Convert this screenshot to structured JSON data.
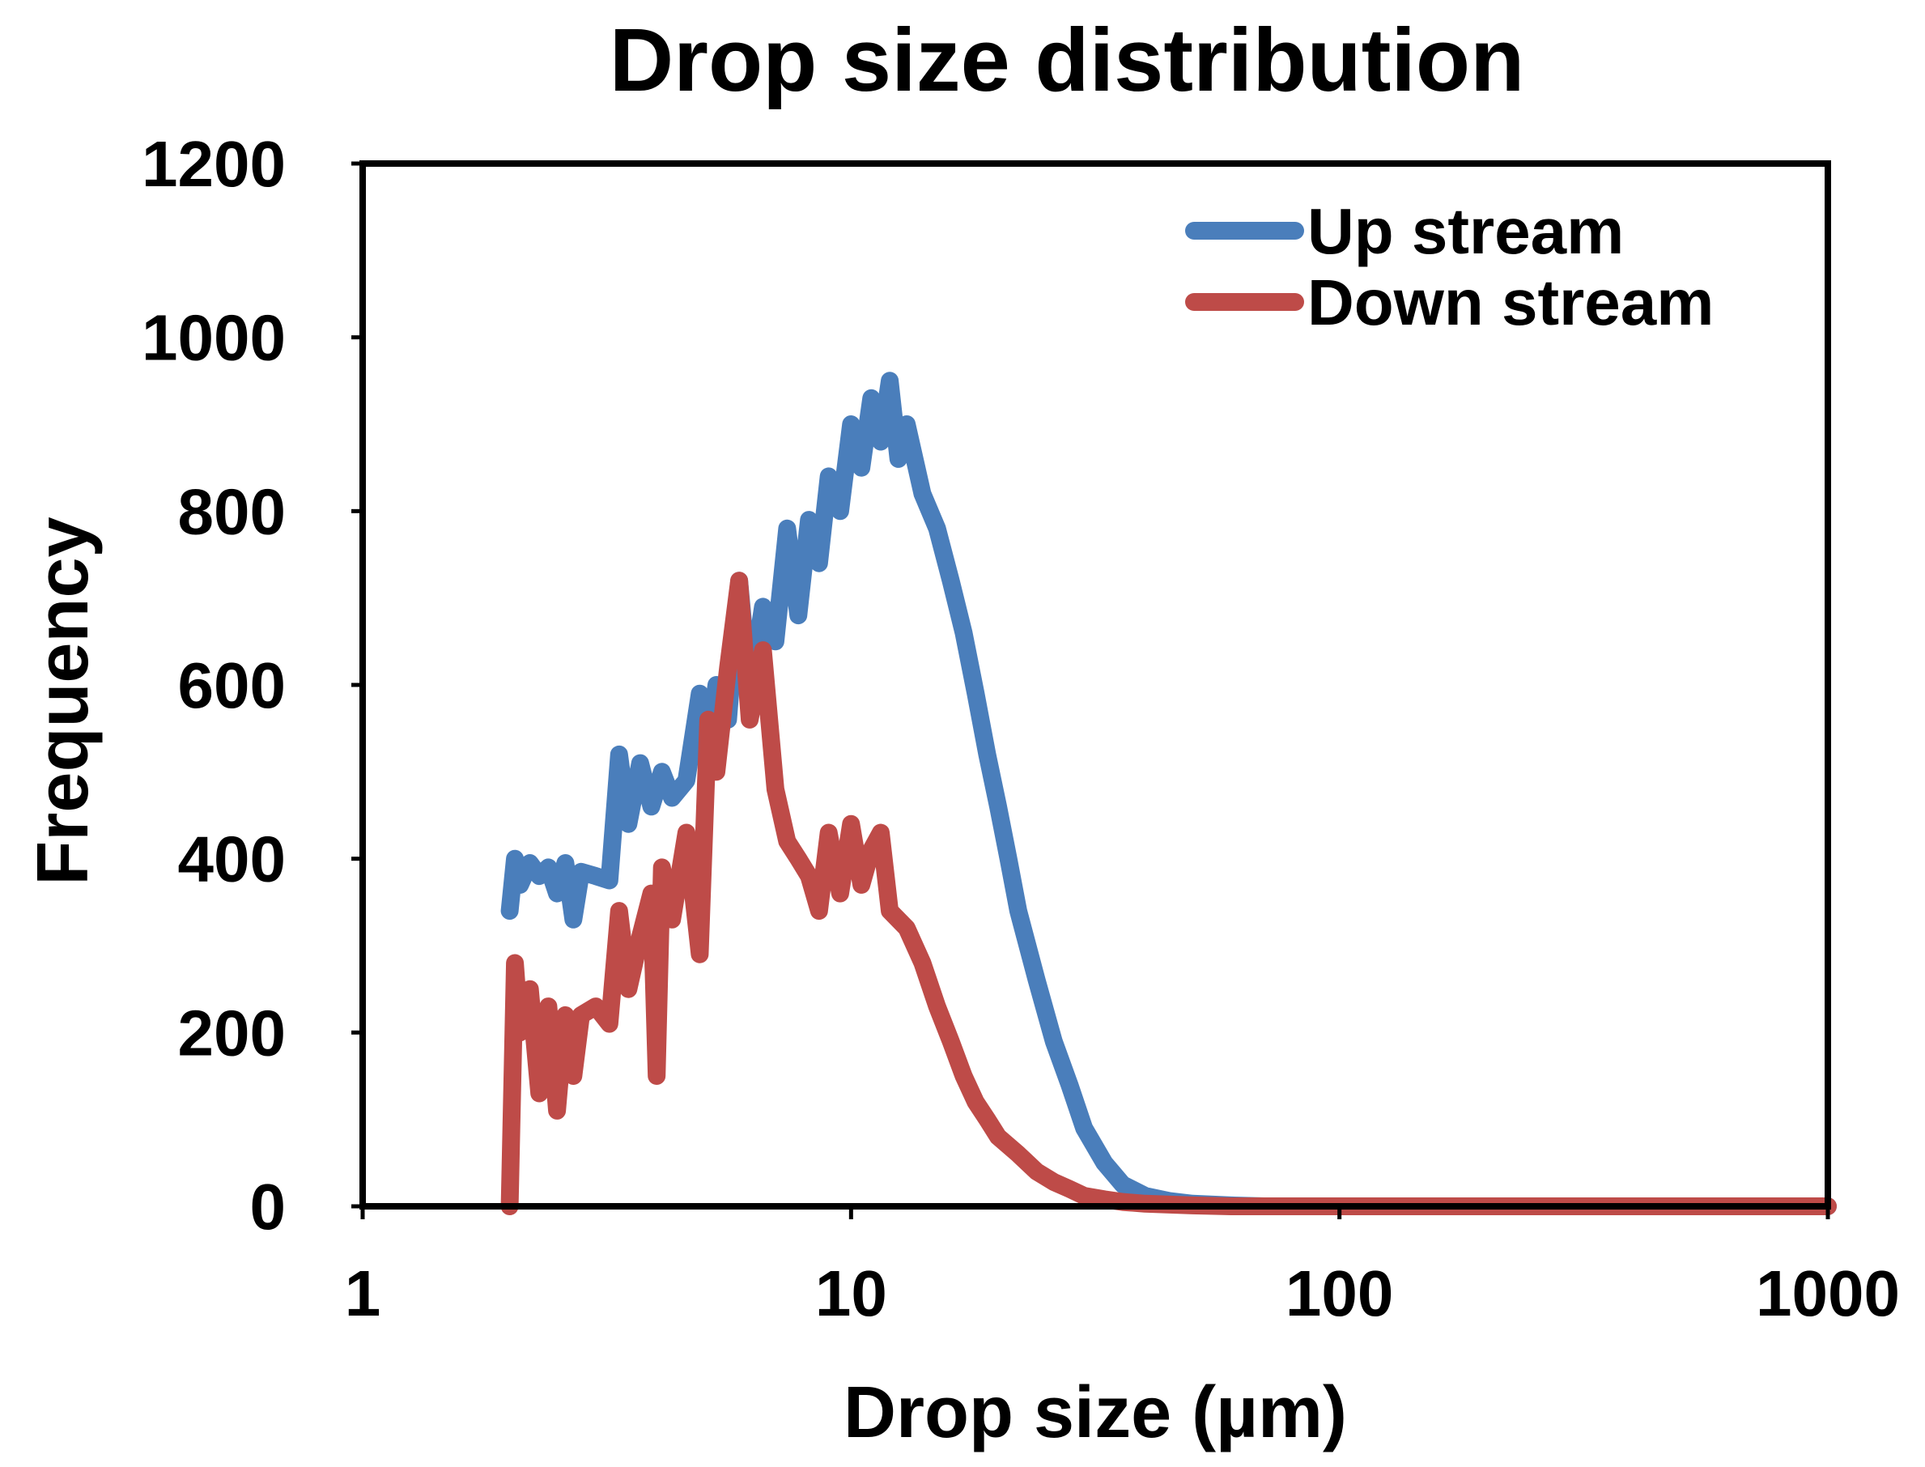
{
  "chart_data": {
    "type": "line",
    "title": "Drop size distribution",
    "xlabel": "Drop size (µm)",
    "ylabel": "Frequency",
    "xscale": "log",
    "xlim": [
      1,
      1000
    ],
    "ylim": [
      0,
      1200
    ],
    "xticks": [
      "1",
      "10",
      "100",
      "1000"
    ],
    "yticks": [
      "0",
      "200",
      "400",
      "600",
      "800",
      "1000",
      "1200"
    ],
    "legend_position": "top-right",
    "series": [
      {
        "name": "Up stream",
        "color": "#4a7ebb",
        "x": [
          2.0,
          2.05,
          2.1,
          2.2,
          2.3,
          2.4,
          2.5,
          2.6,
          2.7,
          2.8,
          3.0,
          3.2,
          3.35,
          3.5,
          3.7,
          3.9,
          4.1,
          4.3,
          4.6,
          4.9,
          5.1,
          5.3,
          5.6,
          5.9,
          6.2,
          6.6,
          7.0,
          7.4,
          7.8,
          8.2,
          8.6,
          9.0,
          9.5,
          10.0,
          10.5,
          11.0,
          11.5,
          12.0,
          12.5,
          13.0,
          14.0,
          15.0,
          16.0,
          17.0,
          18.0,
          19.0,
          20.0,
          21.0,
          22.0,
          24.0,
          26.0,
          28.0,
          30.0,
          33.0,
          36.0,
          40.0,
          45.0,
          50.0,
          60.0,
          70.0,
          80.0,
          100.0,
          200.0,
          500.0,
          1000.0
        ],
        "y": [
          340,
          400,
          370,
          395,
          380,
          390,
          360,
          395,
          330,
          385,
          380,
          375,
          520,
          440,
          510,
          460,
          500,
          470,
          490,
          590,
          530,
          600,
          560,
          720,
          590,
          690,
          650,
          780,
          680,
          790,
          740,
          840,
          800,
          900,
          850,
          930,
          880,
          950,
          860,
          900,
          820,
          780,
          720,
          660,
          590,
          520,
          460,
          400,
          340,
          260,
          190,
          140,
          90,
          50,
          25,
          12,
          6,
          3,
          1,
          0,
          0,
          0,
          0,
          0,
          0
        ]
      },
      {
        "name": "Down stream",
        "color": "#be4b48",
        "x": [
          2.0,
          2.05,
          2.1,
          2.2,
          2.3,
          2.4,
          2.5,
          2.6,
          2.7,
          2.8,
          3.0,
          3.2,
          3.35,
          3.5,
          3.7,
          3.9,
          4.0,
          4.1,
          4.3,
          4.6,
          4.9,
          5.1,
          5.3,
          5.6,
          5.9,
          6.2,
          6.6,
          7.0,
          7.4,
          7.8,
          8.2,
          8.6,
          9.0,
          9.5,
          10.0,
          10.5,
          11.0,
          11.5,
          12.0,
          13.0,
          14.0,
          15.0,
          16.0,
          17.0,
          18.0,
          19.0,
          20.0,
          22.0,
          24.0,
          26.0,
          28.0,
          30.0,
          33.0,
          36.0,
          40.0,
          45.0,
          50.0,
          60.0,
          70.0,
          100.0,
          200.0,
          500.0,
          1000.0
        ],
        "y": [
          0,
          280,
          200,
          250,
          130,
          230,
          110,
          220,
          150,
          220,
          230,
          210,
          340,
          250,
          310,
          360,
          150,
          390,
          330,
          430,
          290,
          560,
          500,
          620,
          720,
          560,
          640,
          480,
          420,
          400,
          380,
          340,
          430,
          360,
          440,
          370,
          410,
          430,
          340,
          320,
          280,
          230,
          190,
          150,
          120,
          100,
          80,
          60,
          40,
          28,
          20,
          12,
          8,
          5,
          3,
          2,
          1,
          0,
          0,
          0,
          0,
          0,
          0
        ]
      }
    ]
  }
}
